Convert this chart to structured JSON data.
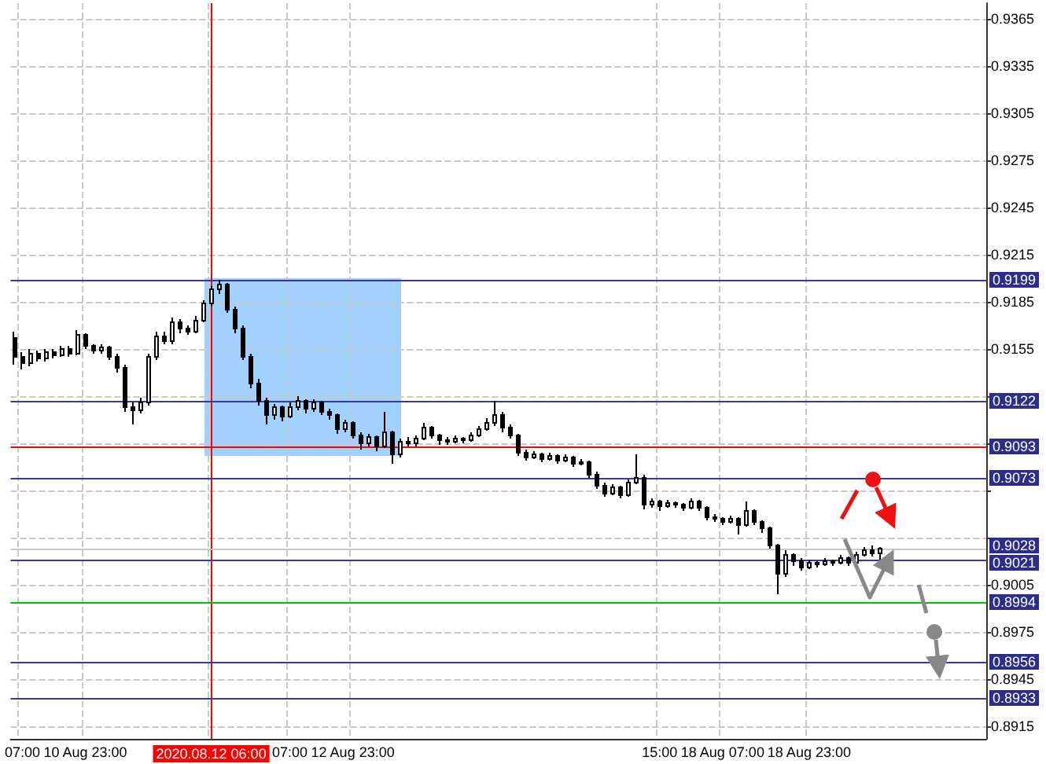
{
  "chart_data": {
    "type": "candlestick",
    "categories": [
      null,
      "07:00",
      null,
      null,
      null,
      null,
      null,
      null,
      null,
      "10 Aug 23:00",
      null,
      null,
      null,
      null,
      null,
      null,
      null,
      null,
      null,
      null,
      null,
      null,
      null,
      null,
      null,
      "2020.08.12 06:00",
      null,
      null,
      null,
      null,
      null,
      null,
      null,
      null,
      null,
      "07:00",
      null,
      null,
      null,
      null,
      null,
      null,
      null,
      "12 Aug 23:00",
      null,
      null,
      null,
      null,
      null,
      null,
      null,
      null,
      null,
      null,
      null,
      null,
      null,
      null,
      null,
      null,
      null,
      null,
      null,
      null,
      null,
      null,
      null,
      null,
      null,
      null,
      null,
      null,
      null,
      null,
      null,
      null,
      null,
      null,
      null,
      null,
      null,
      null,
      "15:00",
      null,
      null,
      null,
      null,
      null,
      null,
      null,
      "18 Aug 07:00",
      null,
      null,
      null,
      null,
      null,
      null,
      null,
      null,
      null,
      null,
      "18 Aug 23:00",
      null,
      null,
      null,
      null,
      null,
      null,
      null,
      null,
      null,
      null,
      null,
      null,
      null,
      null,
      null,
      null,
      null,
      null,
      null,
      null,
      null,
      null
    ],
    "ohlc": [
      [
        0.9162,
        0.9166,
        0.9145,
        0.915
      ],
      [
        0.915,
        0.9153,
        0.9142,
        0.9146
      ],
      [
        0.9146,
        0.9155,
        0.9144,
        0.9152
      ],
      [
        0.9152,
        0.9154,
        0.9147,
        0.9149
      ],
      [
        0.9149,
        0.9155,
        0.9147,
        0.9153
      ],
      [
        0.9153,
        0.9155,
        0.9149,
        0.9151
      ],
      [
        0.9151,
        0.9157,
        0.915,
        0.9155
      ],
      [
        0.9155,
        0.9157,
        0.915,
        0.9152
      ],
      [
        0.9152,
        0.9167,
        0.9151,
        0.9164
      ],
      [
        0.9164,
        0.9165,
        0.9155,
        0.9157
      ],
      [
        0.9157,
        0.9158,
        0.9152,
        0.9154
      ],
      [
        0.9154,
        0.9158,
        0.9152,
        0.9156
      ],
      [
        0.9156,
        0.9157,
        0.9148,
        0.915
      ],
      [
        0.915,
        0.9152,
        0.914,
        0.9143
      ],
      [
        0.9143,
        0.9145,
        0.9115,
        0.9118
      ],
      [
        0.9118,
        0.9121,
        0.9107,
        0.9116
      ],
      [
        0.9116,
        0.9124,
        0.9114,
        0.9121
      ],
      [
        0.9121,
        0.9152,
        0.9119,
        0.915
      ],
      [
        0.915,
        0.9166,
        0.9148,
        0.9163
      ],
      [
        0.9163,
        0.9166,
        0.9158,
        0.916
      ],
      [
        0.916,
        0.9175,
        0.9158,
        0.9172
      ],
      [
        0.9172,
        0.9174,
        0.9165,
        0.9168
      ],
      [
        0.9168,
        0.917,
        0.9164,
        0.9166
      ],
      [
        0.9166,
        0.9176,
        0.9165,
        0.9173
      ],
      [
        0.9173,
        0.9186,
        0.9172,
        0.9184
      ],
      [
        0.9184,
        0.9195,
        0.9182,
        0.9193
      ],
      [
        0.9193,
        0.9199,
        0.919,
        0.9196
      ],
      [
        0.9196,
        0.9197,
        0.9178,
        0.918
      ],
      [
        0.918,
        0.9182,
        0.9165,
        0.9168
      ],
      [
        0.9168,
        0.917,
        0.9148,
        0.915
      ],
      [
        0.915,
        0.9152,
        0.913,
        0.9133
      ],
      [
        0.9133,
        0.9136,
        0.9119,
        0.9122
      ],
      [
        0.9122,
        0.9124,
        0.9107,
        0.9113
      ],
      [
        0.9113,
        0.912,
        0.911,
        0.9118
      ],
      [
        0.9118,
        0.9119,
        0.9109,
        0.9112
      ],
      [
        0.9112,
        0.9121,
        0.9111,
        0.9118
      ],
      [
        0.9118,
        0.9125,
        0.9116,
        0.9122
      ],
      [
        0.9122,
        0.9123,
        0.9114,
        0.9117
      ],
      [
        0.9117,
        0.9123,
        0.9115,
        0.9121
      ],
      [
        0.9121,
        0.9122,
        0.9113,
        0.9115
      ],
      [
        0.9115,
        0.9117,
        0.911,
        0.9113
      ],
      [
        0.9113,
        0.9114,
        0.9101,
        0.9104
      ],
      [
        0.9104,
        0.911,
        0.9102,
        0.9108
      ],
      [
        0.9108,
        0.9109,
        0.9098,
        0.91
      ],
      [
        0.91,
        0.9102,
        0.9091,
        0.9095
      ],
      [
        0.9095,
        0.9101,
        0.9093,
        0.9099
      ],
      [
        0.9099,
        0.91,
        0.909,
        0.9093
      ],
      [
        0.9093,
        0.9115,
        0.9092,
        0.9102
      ],
      [
        0.9102,
        0.9103,
        0.9082,
        0.9088
      ],
      [
        0.9088,
        0.9098,
        0.9086,
        0.9096
      ],
      [
        0.9096,
        0.9099,
        0.9093,
        0.9095
      ],
      [
        0.9095,
        0.91,
        0.9093,
        0.9098
      ],
      [
        0.9098,
        0.9108,
        0.9097,
        0.9105
      ],
      [
        0.9105,
        0.9106,
        0.9098,
        0.91
      ],
      [
        0.91,
        0.9101,
        0.9094,
        0.9097
      ],
      [
        0.9097,
        0.9099,
        0.9094,
        0.9096
      ],
      [
        0.9096,
        0.91,
        0.9095,
        0.9098
      ],
      [
        0.9098,
        0.9099,
        0.9095,
        0.9097
      ],
      [
        0.9097,
        0.9102,
        0.9096,
        0.91
      ],
      [
        0.91,
        0.9106,
        0.9099,
        0.9104
      ],
      [
        0.9104,
        0.9111,
        0.9103,
        0.9108
      ],
      [
        0.9108,
        0.9122,
        0.9106,
        0.9113
      ],
      [
        0.9113,
        0.9115,
        0.9102,
        0.9105
      ],
      [
        0.9105,
        0.9107,
        0.9098,
        0.91
      ],
      [
        0.91,
        0.9101,
        0.9087,
        0.9089
      ],
      [
        0.9089,
        0.9091,
        0.9084,
        0.9086
      ],
      [
        0.9086,
        0.909,
        0.9085,
        0.9088
      ],
      [
        0.9088,
        0.9089,
        0.9083,
        0.9085
      ],
      [
        0.9085,
        0.9089,
        0.9084,
        0.9087
      ],
      [
        0.9087,
        0.9088,
        0.9082,
        0.9084
      ],
      [
        0.9084,
        0.9088,
        0.9083,
        0.9086
      ],
      [
        0.9086,
        0.9087,
        0.908,
        0.9082
      ],
      [
        0.9082,
        0.9085,
        0.9081,
        0.9083
      ],
      [
        0.9083,
        0.9084,
        0.9073,
        0.9075
      ],
      [
        0.9075,
        0.9077,
        0.9066,
        0.9068
      ],
      [
        0.9068,
        0.907,
        0.9061,
        0.9063
      ],
      [
        0.9063,
        0.9069,
        0.9062,
        0.9067
      ],
      [
        0.9067,
        0.9068,
        0.906,
        0.9062
      ],
      [
        0.9062,
        0.9072,
        0.9061,
        0.907
      ],
      [
        0.907,
        0.9088,
        0.9069,
        0.9073
      ],
      [
        0.9073,
        0.9075,
        0.9053,
        0.9056
      ],
      [
        0.9056,
        0.906,
        0.9054,
        0.9058
      ],
      [
        0.9058,
        0.9059,
        0.9052,
        0.9055
      ],
      [
        0.9055,
        0.9059,
        0.9054,
        0.9057
      ],
      [
        0.9057,
        0.9058,
        0.9054,
        0.9056
      ],
      [
        0.9056,
        0.9057,
        0.9052,
        0.9054
      ],
      [
        0.9054,
        0.906,
        0.9053,
        0.9058
      ],
      [
        0.9058,
        0.9059,
        0.9052,
        0.9054
      ],
      [
        0.9054,
        0.9055,
        0.9046,
        0.9048
      ],
      [
        0.9048,
        0.905,
        0.9045,
        0.9047
      ],
      [
        0.9047,
        0.9048,
        0.9043,
        0.9045
      ],
      [
        0.9045,
        0.9049,
        0.9044,
        0.9047
      ],
      [
        0.9047,
        0.9048,
        0.9037,
        0.9043
      ],
      [
        0.9043,
        0.9058,
        0.9042,
        0.9052
      ],
      [
        0.9052,
        0.9053,
        0.9043,
        0.9045
      ],
      [
        0.9045,
        0.9046,
        0.9038,
        0.9041
      ],
      [
        0.9041,
        0.9042,
        0.9028,
        0.903
      ],
      [
        0.903,
        0.9031,
        0.8999,
        0.9012
      ],
      [
        0.9012,
        0.9027,
        0.901,
        0.9024
      ],
      [
        0.9024,
        0.9025,
        0.9017,
        0.902
      ],
      [
        0.902,
        0.9022,
        0.9014,
        0.9016
      ],
      [
        0.9016,
        0.9021,
        0.9015,
        0.9019
      ],
      [
        0.9019,
        0.902,
        0.9016,
        0.9018
      ],
      [
        0.9018,
        0.9022,
        0.9017,
        0.902
      ],
      [
        0.902,
        0.9021,
        0.9017,
        0.9019
      ],
      [
        0.9019,
        0.9024,
        0.9018,
        0.9022
      ],
      [
        0.9022,
        0.9023,
        0.9017,
        0.9019
      ],
      [
        0.9019,
        0.9026,
        0.9018,
        0.9024
      ],
      [
        0.9024,
        0.9029,
        0.9023,
        0.9027
      ],
      [
        0.9027,
        0.903,
        0.9023,
        0.9025
      ],
      [
        0.9025,
        0.9029,
        0.902,
        0.9028
      ],
      null,
      null,
      null,
      null,
      null,
      null,
      null,
      null,
      null,
      null,
      null,
      null,
      null
    ],
    "ylim": [
      0.8907,
      0.9375
    ],
    "yticks": [
      0.8915,
      0.8945,
      0.8975,
      0.9005,
      {
        "value": 0.9035,
        "label": null
      },
      {
        "value": 0.9065,
        "label": null
      },
      {
        "value": 0.9095,
        "label": null
      },
      {
        "value": 0.9125,
        "label": null
      },
      0.9155,
      0.9185,
      0.9215,
      0.9245,
      0.9275,
      0.9305,
      0.9335,
      0.9365
    ],
    "grid": true,
    "ref_lines": [
      {
        "axis": "x",
        "value": "2020.08.12 06:00",
        "color": "#ff0000"
      },
      {
        "axis": "y",
        "value": 0.9199,
        "label": "0.9199",
        "color": "#3a3a99"
      },
      {
        "axis": "y",
        "value": 0.9122,
        "label": "0.9122",
        "color": "#3a3a99"
      },
      {
        "axis": "y",
        "value": 0.9093,
        "label": "0.9093",
        "color": "#ff0000"
      },
      {
        "axis": "y",
        "value": 0.9073,
        "label": "0.9073",
        "color": "#3a3a99"
      },
      {
        "axis": "y",
        "value": 0.9028,
        "label": "0.9028",
        "color": "#c8c8c8"
      },
      {
        "axis": "y",
        "value": 0.9021,
        "label": "0.9021",
        "color": "#3a3a99"
      },
      {
        "axis": "y",
        "value": 0.8994,
        "label": "0.8994",
        "color": "#00c000"
      },
      {
        "axis": "y",
        "value": 0.8956,
        "label": "0.8956",
        "color": "#3a3a99"
      },
      {
        "axis": "y",
        "value": 0.8933,
        "label": "0.8933",
        "color": "#3a3a99"
      }
    ]
  }
}
